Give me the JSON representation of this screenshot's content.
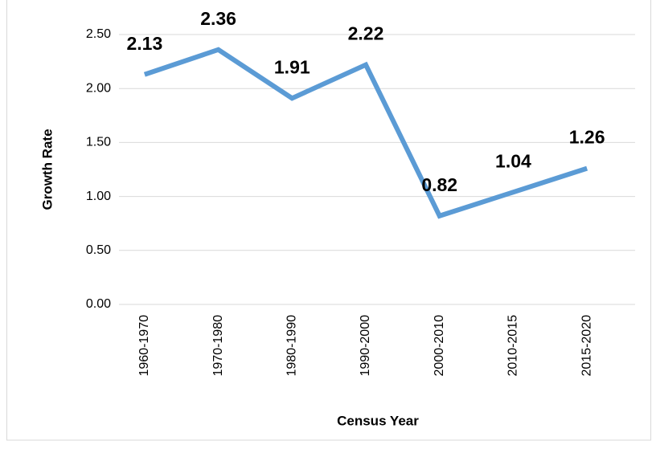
{
  "chart_data": {
    "type": "line",
    "x_label": "Census Year",
    "y_label": "Growth Rate",
    "categories": [
      "1960-1970",
      "1970-1980",
      "1980-1990",
      "1990-2000",
      "2000-2010",
      "2010-2015",
      "2015-2020"
    ],
    "values": [
      2.13,
      2.36,
      1.91,
      2.22,
      0.82,
      1.04,
      1.26
    ],
    "color": "#5b9bd5",
    "ylim": [
      0,
      2.5
    ],
    "yticks": [
      {
        "value": 0,
        "label": "0.00"
      },
      {
        "value": 0.5,
        "label": "0.50"
      },
      {
        "value": 1,
        "label": "1.00"
      },
      {
        "value": 1.5,
        "label": "1.50"
      },
      {
        "value": 2,
        "label": "2.00"
      },
      {
        "value": 2.5,
        "label": "2.50"
      }
    ],
    "grid": true
  }
}
